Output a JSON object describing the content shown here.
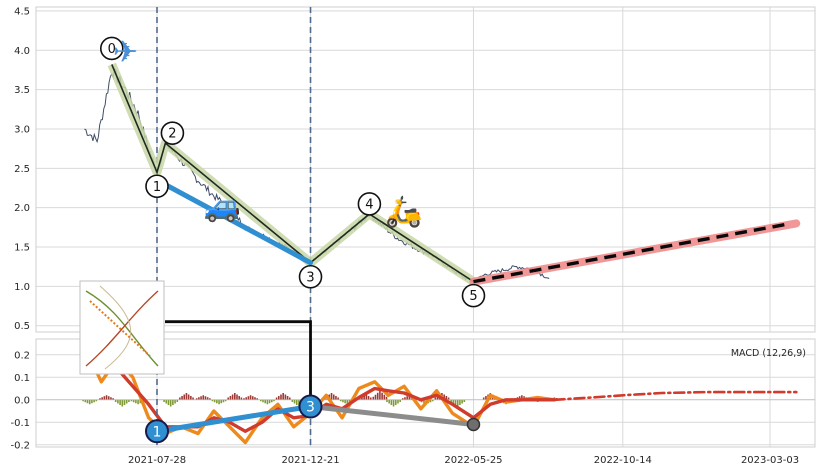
{
  "chart_data": [
    {
      "type": "line",
      "panel": "price",
      "x_tick_labels": [
        "2021-07-28",
        "2021-12-21",
        "2022-05-25",
        "2022-10-14",
        "2023-03-03"
      ],
      "y_ticks": [
        0.5,
        1.0,
        1.5,
        2.0,
        2.5,
        3.0,
        3.5,
        4.0,
        4.5
      ],
      "y_tick_labels": [
        "0.5",
        "1.0",
        "1.5",
        "2.0",
        "2.5",
        "3.0",
        "3.5",
        "4.0",
        "4.5"
      ],
      "ylim": [
        0.42,
        4.55
      ],
      "grid": true,
      "zigzag_points": [
        {
          "label": "0",
          "date": "2021-06-15",
          "value": 3.82
        },
        {
          "label": "1",
          "date": "2021-07-28",
          "value": 2.45
        },
        {
          "label": "2",
          "date": "2021-08-05",
          "value": 2.82
        },
        {
          "label": "3",
          "date": "2021-12-21",
          "value": 1.3
        },
        {
          "label": "4",
          "date": "2022-02-15",
          "value": 1.92
        },
        {
          "label": "5",
          "date": "2022-05-25",
          "value": 1.06
        }
      ],
      "trend_line": {
        "from": {
          "date": "2021-07-28",
          "value": 2.35
        },
        "to": {
          "date": "2021-12-21",
          "value": 1.3
        }
      },
      "forecast_line": {
        "from": {
          "date": "2022-05-25",
          "value": 1.06
        },
        "to": {
          "date": "2023-03-28",
          "value": 1.8
        }
      },
      "price_series_dates": [
        "2021-05-20",
        "2021-06-01",
        "2021-06-15",
        "2021-06-28",
        "2021-07-10",
        "2021-07-20",
        "2021-07-28",
        "2021-08-05",
        "2021-08-20",
        "2021-09-05",
        "2021-09-20",
        "2021-10-05",
        "2021-10-20",
        "2021-11-05",
        "2021-11-20",
        "2021-12-05",
        "2021-12-21",
        "2022-01-05",
        "2022-01-20",
        "2022-02-05",
        "2022-02-15",
        "2022-03-01",
        "2022-03-15",
        "2022-04-01",
        "2022-04-15",
        "2022-05-01",
        "2022-05-15",
        "2022-05-25",
        "2022-06-05",
        "2022-06-20",
        "2022-07-05",
        "2022-07-20",
        "2022-08-05"
      ],
      "price_series_values": [
        3.0,
        2.85,
        3.75,
        3.5,
        3.2,
        2.75,
        2.45,
        2.82,
        2.6,
        2.35,
        2.15,
        2.0,
        1.75,
        1.65,
        1.55,
        1.45,
        1.3,
        1.45,
        1.62,
        1.8,
        1.92,
        1.75,
        1.6,
        1.48,
        1.4,
        1.25,
        1.12,
        1.06,
        1.15,
        1.2,
        1.25,
        1.22,
        1.1
      ],
      "vertical_markers": [
        "2021-07-28",
        "2021-12-21"
      ],
      "icons": [
        {
          "name": "airplane-icon",
          "glyph": "✈",
          "date": "2021-06-28",
          "value": 3.98,
          "color": "#4a8fd8"
        },
        {
          "name": "car-icon",
          "glyph": "🚙",
          "date": "2021-09-28",
          "value": 2.02,
          "color": "#2f86c8"
        },
        {
          "name": "scooter-icon",
          "glyph": "🛵",
          "date": "2022-03-20",
          "value": 1.95,
          "color": "#e39a2c"
        }
      ]
    },
    {
      "type": "line",
      "panel": "macd",
      "title": "MACD (12,26,9)",
      "y_ticks": [
        -0.2,
        -0.1,
        0.0,
        0.1,
        0.2
      ],
      "y_tick_labels": [
        "-0.2",
        "-0.1",
        "0.0",
        "0.1",
        "0.2"
      ],
      "ylim": [
        -0.21,
        0.27
      ],
      "grid": true,
      "series": [
        {
          "color": "#ee8a1c",
          "x": [
            "2021-05-20",
            "2021-06-05",
            "2021-06-20",
            "2021-07-05",
            "2021-07-20",
            "2021-08-05",
            "2021-08-20",
            "2021-09-05",
            "2021-09-20",
            "2021-10-05",
            "2021-10-20",
            "2021-11-05",
            "2021-11-20",
            "2021-12-05",
            "2021-12-21",
            "2022-01-05",
            "2022-01-20",
            "2022-02-05",
            "2022-02-20",
            "2022-03-05",
            "2022-03-20",
            "2022-04-05",
            "2022-04-20",
            "2022-05-05",
            "2022-05-25",
            "2022-06-10",
            "2022-06-25",
            "2022-07-10",
            "2022-07-25",
            "2022-08-10"
          ],
          "values": [
            0.24,
            0.08,
            0.18,
            0.1,
            -0.08,
            -0.15,
            -0.12,
            -0.15,
            -0.05,
            -0.12,
            -0.19,
            -0.08,
            -0.02,
            -0.12,
            -0.06,
            0.02,
            -0.08,
            0.05,
            0.08,
            0.02,
            0.06,
            -0.04,
            0.04,
            -0.06,
            -0.12,
            0.02,
            -0.01,
            0.0,
            0.01,
            0.0
          ]
        },
        {
          "color": "#d03b2c",
          "x": [
            "2021-05-20",
            "2021-06-05",
            "2021-06-20",
            "2021-07-05",
            "2021-07-20",
            "2021-08-05",
            "2021-08-20",
            "2021-09-05",
            "2021-09-20",
            "2021-10-05",
            "2021-10-20",
            "2021-11-05",
            "2021-11-20",
            "2021-12-05",
            "2021-12-21",
            "2022-01-05",
            "2022-01-20",
            "2022-02-05",
            "2022-02-20",
            "2022-03-05",
            "2022-03-20",
            "2022-04-05",
            "2022-04-20",
            "2022-05-05",
            "2022-05-25",
            "2022-06-10",
            "2022-06-25",
            "2022-07-10",
            "2022-07-25",
            "2022-08-10"
          ],
          "values": [
            0.22,
            0.12,
            0.14,
            0.06,
            -0.02,
            -0.12,
            -0.12,
            -0.12,
            -0.08,
            -0.1,
            -0.14,
            -0.1,
            -0.04,
            -0.08,
            -0.07,
            -0.02,
            -0.04,
            0.01,
            0.05,
            0.04,
            0.03,
            0.0,
            0.02,
            -0.02,
            -0.08,
            -0.02,
            0.0,
            0.0,
            0.0,
            0.0
          ]
        },
        {
          "color": "#d03b2c",
          "style": "dash-dot",
          "x": [
            "2022-08-10",
            "2022-09-15",
            "2022-10-14",
            "2022-11-20",
            "2023-01-01",
            "2023-02-10",
            "2023-03-28"
          ],
          "values": [
            0.0,
            0.01,
            0.02,
            0.03,
            0.034,
            0.034,
            0.034
          ]
        }
      ],
      "histogram": {
        "x": [
          "2021-05-25",
          "2021-06-10",
          "2021-06-25",
          "2021-07-10",
          "2021-08-10",
          "2021-08-25",
          "2021-09-10",
          "2021-09-25",
          "2021-10-10",
          "2021-10-25",
          "2021-11-10",
          "2021-11-25",
          "2021-12-10",
          "2022-01-10",
          "2022-01-25",
          "2022-02-10",
          "2022-02-25",
          "2022-03-10",
          "2022-03-25",
          "2022-04-10",
          "2022-04-25",
          "2022-05-10",
          "2022-06-10",
          "2022-06-25",
          "2022-07-10",
          "2022-07-25",
          "2022-08-10"
        ],
        "values": [
          -0.02,
          0.02,
          -0.03,
          -0.02,
          -0.03,
          0.03,
          0.02,
          -0.02,
          0.03,
          0.02,
          -0.02,
          0.03,
          -0.03,
          0.03,
          -0.02,
          0.03,
          0.04,
          -0.03,
          0.02,
          -0.02,
          0.03,
          -0.03,
          0.03,
          -0.02,
          0.02,
          -0.01,
          0.01
        ]
      },
      "divergence_points": [
        {
          "label": "1",
          "date": "2021-07-28",
          "value": -0.14
        },
        {
          "label": "3",
          "date": "2021-12-21",
          "value": -0.03
        },
        {
          "label": "",
          "date": "2022-05-25",
          "value": -0.11
        }
      ]
    }
  ]
}
